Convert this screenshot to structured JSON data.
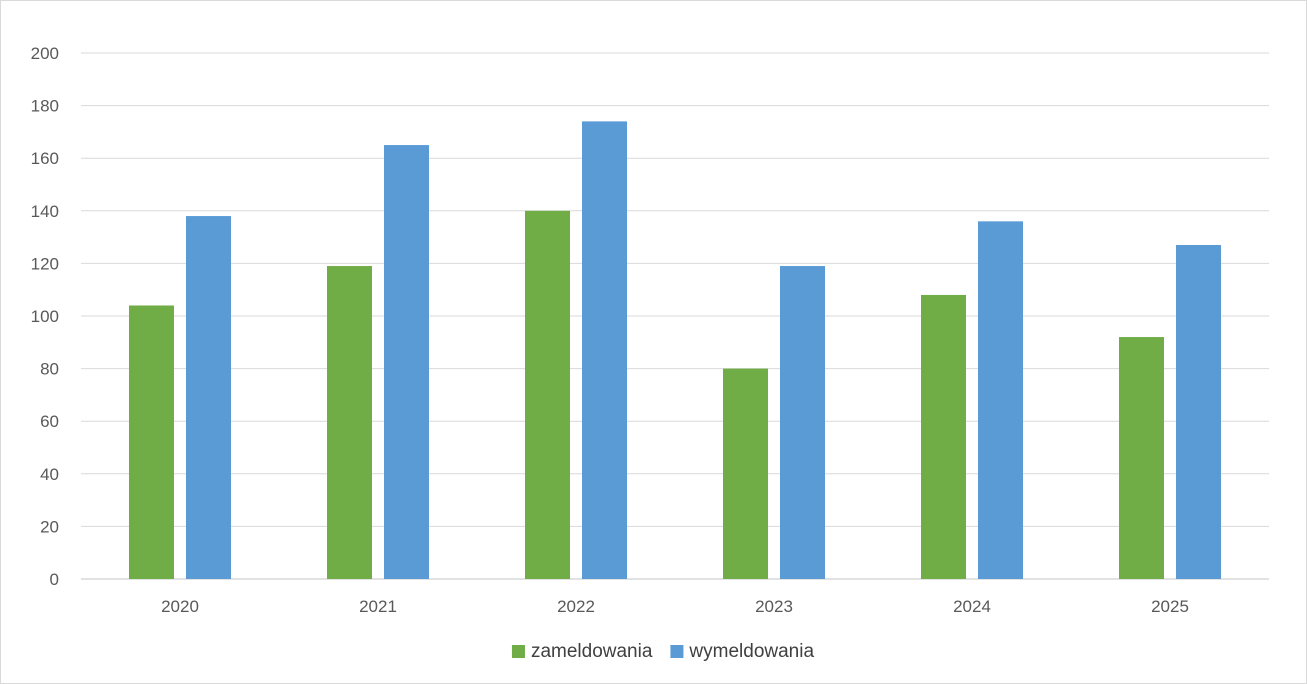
{
  "chart_data": {
    "type": "bar",
    "title": "",
    "xlabel": "",
    "ylabel": "",
    "categories": [
      "2020",
      "2021",
      "2022",
      "2023",
      "2024",
      "2025"
    ],
    "series": [
      {
        "name": "zameldowania",
        "color": "#70ad47",
        "values": [
          104,
          119,
          140,
          80,
          108,
          92
        ]
      },
      {
        "name": "wymeldowania",
        "color": "#5b9bd5",
        "values": [
          138,
          165,
          174,
          119,
          136,
          127
        ]
      }
    ],
    "ylim": [
      0,
      200
    ],
    "yticks": [
      0,
      20,
      40,
      60,
      80,
      100,
      120,
      140,
      160,
      180,
      200
    ],
    "grid": true,
    "gridline_color": "#d9d9d9",
    "legend_position": "bottom"
  }
}
